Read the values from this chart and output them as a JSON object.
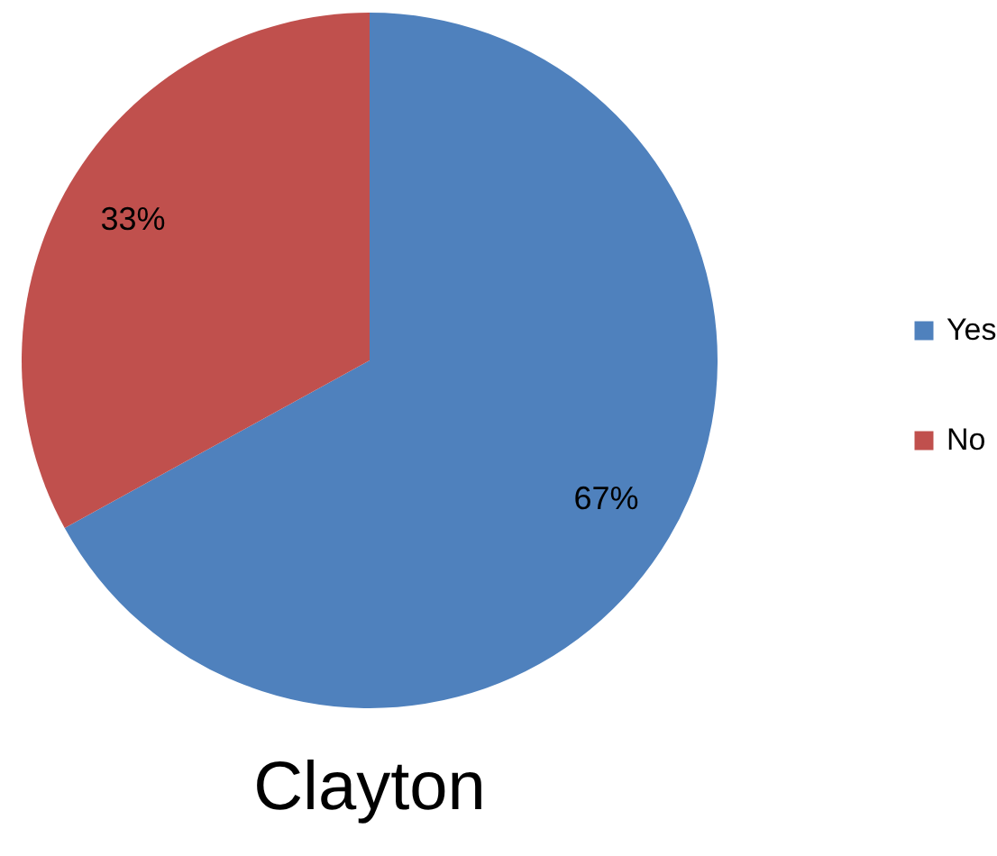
{
  "chart_data": {
    "type": "pie",
    "title": "Clayton",
    "categories": [
      "Yes",
      "No"
    ],
    "values": [
      67,
      33
    ],
    "colors": [
      "#4f81bd",
      "#c0504d"
    ],
    "value_labels": [
      "67%",
      "33%"
    ],
    "legend": "right"
  }
}
